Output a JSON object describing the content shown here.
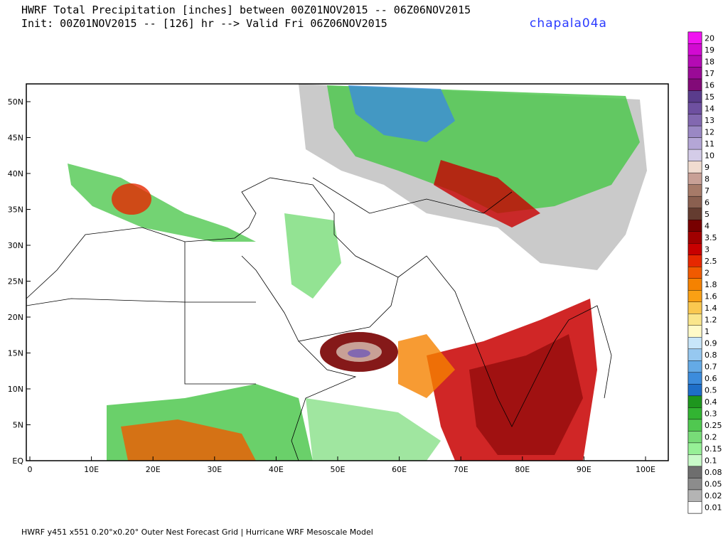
{
  "header": {
    "line1": "HWRF Total Precipitation [inches] between 00Z01NOV2015 -- 06Z06NOV2015",
    "line2": "Init: 00Z01NOV2015 -- [126] hr --> Valid Fri 06Z06NOV2015",
    "storm": "chapala04a"
  },
  "map": {
    "lat_labels": [
      "50N",
      "45N",
      "40N",
      "35N",
      "30N",
      "25N",
      "20N",
      "15N",
      "10N",
      "5N",
      "EQ"
    ],
    "lon_labels": [
      "0",
      "10E",
      "20E",
      "30E",
      "40E",
      "50E",
      "60E",
      "70E",
      "80E",
      "90E",
      "100E"
    ]
  },
  "colorbar": {
    "levels": [
      {
        "label": "20",
        "color": "#f014f0"
      },
      {
        "label": "19",
        "color": "#d20ad2"
      },
      {
        "label": "18",
        "color": "#b40ab4"
      },
      {
        "label": "17",
        "color": "#9a0a96"
      },
      {
        "label": "16",
        "color": "#820a78"
      },
      {
        "label": "15",
        "color": "#5a3c8c"
      },
      {
        "label": "14",
        "color": "#6e50a0"
      },
      {
        "label": "13",
        "color": "#8268b0"
      },
      {
        "label": "12",
        "color": "#9a88c4"
      },
      {
        "label": "11",
        "color": "#b4a6d6"
      },
      {
        "label": "10",
        "color": "#d4cce8"
      },
      {
        "label": "9",
        "color": "#f0dcd0"
      },
      {
        "label": "8",
        "color": "#c8a096"
      },
      {
        "label": "7",
        "color": "#a67a68"
      },
      {
        "label": "6",
        "color": "#8a6050"
      },
      {
        "label": "5",
        "color": "#643c30"
      },
      {
        "label": "4",
        "color": "#780000"
      },
      {
        "label": "3.5",
        "color": "#a00000"
      },
      {
        "label": "3",
        "color": "#c80000"
      },
      {
        "label": "2.5",
        "color": "#e62800"
      },
      {
        "label": "2",
        "color": "#f05a00"
      },
      {
        "label": "1.8",
        "color": "#f58200"
      },
      {
        "label": "1.6",
        "color": "#faa014"
      },
      {
        "label": "1.4",
        "color": "#fac850"
      },
      {
        "label": "1.2",
        "color": "#fae68c"
      },
      {
        "label": "1",
        "color": "#fffac8"
      },
      {
        "label": "0.9",
        "color": "#c8e6fa"
      },
      {
        "label": "0.8",
        "color": "#96c8f0"
      },
      {
        "label": "0.7",
        "color": "#64aae6"
      },
      {
        "label": "0.6",
        "color": "#3c8cdc"
      },
      {
        "label": "0.5",
        "color": "#1e6ec8"
      },
      {
        "label": "0.4",
        "color": "#1e961e"
      },
      {
        "label": "0.3",
        "color": "#32b432"
      },
      {
        "label": "0.25",
        "color": "#50c850"
      },
      {
        "label": "0.2",
        "color": "#78dc78"
      },
      {
        "label": "0.15",
        "color": "#96f096"
      },
      {
        "label": "0.1",
        "color": "#c8fac8"
      },
      {
        "label": "0.08",
        "color": "#6e6e6e"
      },
      {
        "label": "0.05",
        "color": "#8c8c8c"
      },
      {
        "label": "0.02",
        "color": "#b4b4b4"
      },
      {
        "label": "0.01",
        "color": "#ffffff"
      }
    ]
  },
  "footer": "HWRF y451 x551 0.20°x0.20° Outer Nest Forecast Grid | Hurricane WRF Mesoscale Model"
}
